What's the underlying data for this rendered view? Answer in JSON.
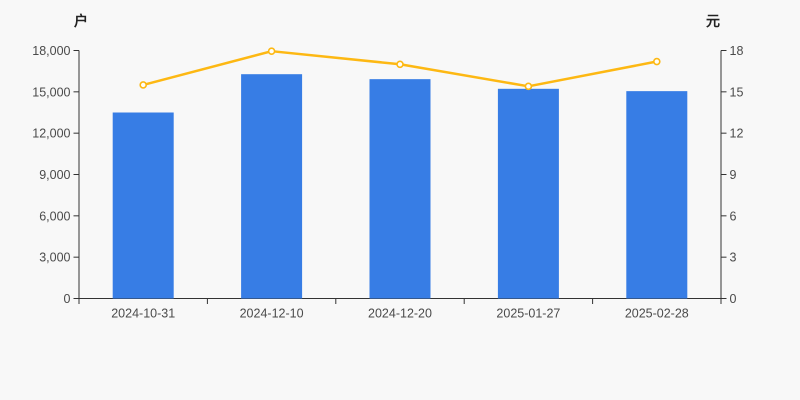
{
  "chart_data": {
    "type": "bar",
    "title": "",
    "categories": [
      "2024-10-31",
      "2024-12-10",
      "2024-12-20",
      "2025-01-27",
      "2025-02-28"
    ],
    "series": [
      {
        "id": "bar-series",
        "type": "bar",
        "axis": "left",
        "unit": "户",
        "color": "#377DE5",
        "values": [
          13500,
          16280,
          15920,
          15220,
          15050
        ]
      },
      {
        "id": "line-series",
        "type": "line",
        "axis": "right",
        "unit": "元",
        "color": "#FDB813",
        "marker": "open-circle",
        "marker_fill": "#FFFEF8",
        "values": [
          15.5,
          17.95,
          17.0,
          15.4,
          17.2
        ]
      }
    ],
    "left_axis": {
      "label": "户",
      "min": 0,
      "max": 18000,
      "step": 3000,
      "tick_labels": [
        "0",
        "3,000",
        "6,000",
        "9,000",
        "12,000",
        "15,000",
        "18,000"
      ]
    },
    "right_axis": {
      "label": "元",
      "min": 0,
      "max": 18,
      "step": 3,
      "tick_labels": [
        "0",
        "3",
        "6",
        "9",
        "12",
        "15",
        "18"
      ]
    },
    "grid": false,
    "legend": "none"
  },
  "colors": {
    "background": "#f8f8f8",
    "axis_line": "#333333",
    "tick_label": "#4a4a4a",
    "bar": "#377DE5",
    "line": "#FDB813"
  }
}
